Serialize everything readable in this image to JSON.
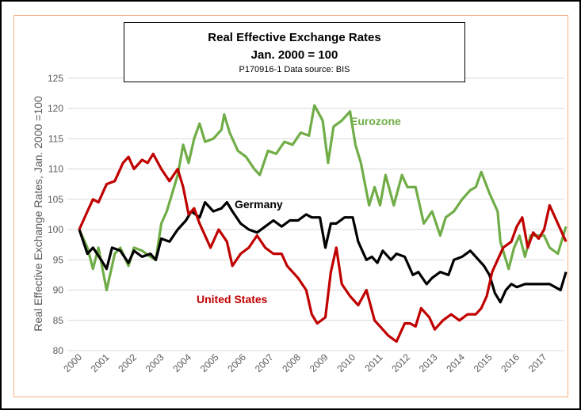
{
  "chart_data": {
    "type": "line",
    "title": "Real Effective Exchange Rates",
    "subtitle": "Jan. 2000 = 100",
    "note": "P170916-1 Data source: BIS",
    "ylabel": "Real Effective Exchange Rates, Jan. 2000 =100",
    "xlabel": "",
    "ylim": [
      80,
      125
    ],
    "yticks": [
      80,
      85,
      90,
      95,
      100,
      105,
      110,
      115,
      120,
      125
    ],
    "xticks": [
      "2000",
      "2001",
      "2002",
      "2003",
      "2004",
      "2005",
      "2006",
      "2007",
      "2008",
      "2009",
      "2010",
      "2011",
      "2012",
      "2013",
      "2014",
      "2015",
      "2016",
      "2017"
    ],
    "grid": true,
    "legend": "inline labels",
    "series": [
      {
        "name": "Eurozone",
        "color": "#70ad47",
        "points": [
          [
            2000,
            100
          ],
          [
            2000.3,
            97
          ],
          [
            2000.5,
            93.5
          ],
          [
            2000.7,
            97
          ],
          [
            2001.0,
            90
          ],
          [
            2001.3,
            96
          ],
          [
            2001.5,
            97
          ],
          [
            2001.8,
            94
          ],
          [
            2002.0,
            97
          ],
          [
            2002.3,
            96.5
          ],
          [
            2002.6,
            95.5
          ],
          [
            2002.8,
            95
          ],
          [
            2003.0,
            101
          ],
          [
            2003.2,
            103
          ],
          [
            2003.4,
            106
          ],
          [
            2003.6,
            109
          ],
          [
            2003.8,
            114
          ],
          [
            2004.0,
            111
          ],
          [
            2004.2,
            115
          ],
          [
            2004.4,
            117.5
          ],
          [
            2004.6,
            114.5
          ],
          [
            2004.9,
            115
          ],
          [
            2005.2,
            116.5
          ],
          [
            2005.3,
            119
          ],
          [
            2005.5,
            116
          ],
          [
            2005.8,
            113
          ],
          [
            2006.1,
            112
          ],
          [
            2006.4,
            110
          ],
          [
            2006.6,
            109
          ],
          [
            2006.9,
            113
          ],
          [
            2007.2,
            112.5
          ],
          [
            2007.5,
            114.5
          ],
          [
            2007.8,
            114
          ],
          [
            2008.1,
            116
          ],
          [
            2008.4,
            115.5
          ],
          [
            2008.6,
            120.5
          ],
          [
            2008.9,
            118
          ],
          [
            2009.1,
            111
          ],
          [
            2009.3,
            117
          ],
          [
            2009.6,
            118
          ],
          [
            2009.9,
            119.5
          ],
          [
            2010.1,
            114
          ],
          [
            2010.3,
            111
          ],
          [
            2010.6,
            104
          ],
          [
            2010.8,
            107
          ],
          [
            2011.0,
            104
          ],
          [
            2011.2,
            109
          ],
          [
            2011.5,
            104
          ],
          [
            2011.8,
            109
          ],
          [
            2012.0,
            107
          ],
          [
            2012.3,
            107
          ],
          [
            2012.6,
            101
          ],
          [
            2012.9,
            103
          ],
          [
            2013.2,
            99
          ],
          [
            2013.4,
            102
          ],
          [
            2013.7,
            103
          ],
          [
            2014.0,
            105
          ],
          [
            2014.3,
            106.5
          ],
          [
            2014.5,
            107
          ],
          [
            2014.7,
            109.5
          ],
          [
            2015.0,
            106
          ],
          [
            2015.3,
            103
          ],
          [
            2015.4,
            98
          ],
          [
            2015.7,
            93.5
          ],
          [
            2015.9,
            97
          ],
          [
            2016.1,
            99
          ],
          [
            2016.3,
            95.5
          ],
          [
            2016.5,
            99
          ],
          [
            2016.8,
            99
          ],
          [
            2017.0,
            99
          ],
          [
            2017.2,
            97
          ],
          [
            2017.5,
            96
          ],
          [
            2017.8,
            100.5
          ]
        ]
      },
      {
        "name": "Germany",
        "color": "#000000",
        "points": [
          [
            2000,
            100
          ],
          [
            2000.3,
            96
          ],
          [
            2000.5,
            97
          ],
          [
            2000.8,
            95
          ],
          [
            2001.0,
            93.5
          ],
          [
            2001.2,
            97
          ],
          [
            2001.5,
            96.5
          ],
          [
            2001.8,
            94.5
          ],
          [
            2002.0,
            96.5
          ],
          [
            2002.3,
            95.5
          ],
          [
            2002.6,
            96
          ],
          [
            2002.8,
            95
          ],
          [
            2003.0,
            98.5
          ],
          [
            2003.3,
            98
          ],
          [
            2003.6,
            100
          ],
          [
            2003.9,
            101.5
          ],
          [
            2004.1,
            103
          ],
          [
            2004.4,
            102
          ],
          [
            2004.6,
            104.5
          ],
          [
            2004.9,
            103
          ],
          [
            2005.2,
            103.5
          ],
          [
            2005.4,
            104.5
          ],
          [
            2005.6,
            103
          ],
          [
            2005.9,
            101
          ],
          [
            2006.2,
            100
          ],
          [
            2006.5,
            99.5
          ],
          [
            2006.8,
            100.5
          ],
          [
            2007.1,
            101.5
          ],
          [
            2007.4,
            100.5
          ],
          [
            2007.7,
            101.5
          ],
          [
            2008.0,
            101.5
          ],
          [
            2008.3,
            102.5
          ],
          [
            2008.5,
            102
          ],
          [
            2008.8,
            102
          ],
          [
            2009.0,
            97
          ],
          [
            2009.2,
            101
          ],
          [
            2009.4,
            101
          ],
          [
            2009.7,
            102
          ],
          [
            2010.0,
            102
          ],
          [
            2010.2,
            98
          ],
          [
            2010.5,
            95
          ],
          [
            2010.7,
            95.5
          ],
          [
            2010.9,
            94.5
          ],
          [
            2011.1,
            96.5
          ],
          [
            2011.4,
            95
          ],
          [
            2011.6,
            96
          ],
          [
            2011.9,
            95.5
          ],
          [
            2012.2,
            92.5
          ],
          [
            2012.4,
            93
          ],
          [
            2012.7,
            91
          ],
          [
            2012.9,
            92
          ],
          [
            2013.2,
            93
          ],
          [
            2013.5,
            92.5
          ],
          [
            2013.7,
            95
          ],
          [
            2014.0,
            95.5
          ],
          [
            2014.3,
            96.5
          ],
          [
            2014.5,
            95.5
          ],
          [
            2014.8,
            94
          ],
          [
            2015.0,
            92.5
          ],
          [
            2015.2,
            89.5
          ],
          [
            2015.4,
            88
          ],
          [
            2015.6,
            90
          ],
          [
            2015.8,
            91
          ],
          [
            2016.0,
            90.5
          ],
          [
            2016.3,
            91
          ],
          [
            2016.6,
            91
          ],
          [
            2016.9,
            91
          ],
          [
            2017.2,
            91
          ],
          [
            2017.4,
            90.5
          ],
          [
            2017.6,
            90
          ],
          [
            2017.8,
            93
          ]
        ]
      },
      {
        "name": "United States",
        "color": "#c00000",
        "points": [
          [
            2000,
            100
          ],
          [
            2000.3,
            103
          ],
          [
            2000.5,
            105
          ],
          [
            2000.7,
            104.5
          ],
          [
            2001.0,
            107.5
          ],
          [
            2001.3,
            108
          ],
          [
            2001.6,
            111
          ],
          [
            2001.8,
            112
          ],
          [
            2002.0,
            110
          ],
          [
            2002.3,
            111.5
          ],
          [
            2002.5,
            111
          ],
          [
            2002.7,
            112.5
          ],
          [
            2003.0,
            110
          ],
          [
            2003.3,
            108
          ],
          [
            2003.6,
            110
          ],
          [
            2003.8,
            107
          ],
          [
            2004.0,
            102.5
          ],
          [
            2004.2,
            103.5
          ],
          [
            2004.4,
            101
          ],
          [
            2004.8,
            97
          ],
          [
            2005.1,
            100
          ],
          [
            2005.4,
            98
          ],
          [
            2005.6,
            94
          ],
          [
            2005.9,
            96
          ],
          [
            2006.2,
            97
          ],
          [
            2006.5,
            99
          ],
          [
            2006.8,
            97
          ],
          [
            2007.1,
            96
          ],
          [
            2007.4,
            96
          ],
          [
            2007.6,
            94
          ],
          [
            2008.0,
            92
          ],
          [
            2008.3,
            90
          ],
          [
            2008.5,
            86
          ],
          [
            2008.7,
            84.5
          ],
          [
            2009.0,
            85.5
          ],
          [
            2009.2,
            93
          ],
          [
            2009.4,
            97
          ],
          [
            2009.6,
            91
          ],
          [
            2009.9,
            89
          ],
          [
            2010.2,
            87.5
          ],
          [
            2010.5,
            90
          ],
          [
            2010.8,
            85
          ],
          [
            2011.0,
            84
          ],
          [
            2011.3,
            82.5
          ],
          [
            2011.6,
            81.5
          ],
          [
            2011.9,
            84.5
          ],
          [
            2012.1,
            84.5
          ],
          [
            2012.3,
            84
          ],
          [
            2012.5,
            87
          ],
          [
            2012.8,
            85.5
          ],
          [
            2013.0,
            83.5
          ],
          [
            2013.3,
            85
          ],
          [
            2013.6,
            86
          ],
          [
            2013.9,
            85
          ],
          [
            2014.2,
            86
          ],
          [
            2014.5,
            86
          ],
          [
            2014.7,
            87
          ],
          [
            2014.9,
            89
          ],
          [
            2015.1,
            93
          ],
          [
            2015.3,
            95
          ],
          [
            2015.5,
            97
          ],
          [
            2015.8,
            98
          ],
          [
            2016.0,
            100.5
          ],
          [
            2016.2,
            102
          ],
          [
            2016.4,
            97
          ],
          [
            2016.6,
            99.5
          ],
          [
            2016.8,
            98.5
          ],
          [
            2017.0,
            100
          ],
          [
            2017.2,
            104
          ],
          [
            2017.4,
            102
          ],
          [
            2017.6,
            100
          ],
          [
            2017.8,
            98
          ]
        ]
      }
    ]
  }
}
